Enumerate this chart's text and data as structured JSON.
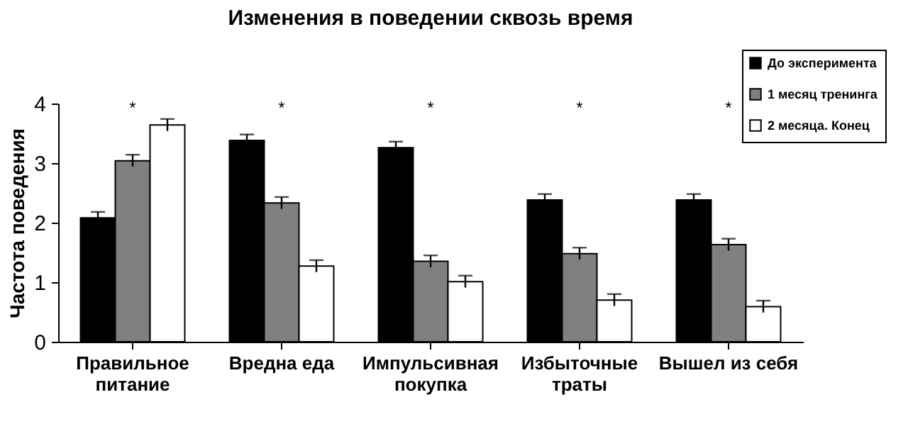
{
  "chart_data": {
    "type": "bar",
    "title": "Изменения в поведении сквозь время",
    "ylabel": "Частота поведения",
    "categories": [
      "Правильное\nпитание",
      "Вредна еда",
      "Импульсивная\nпокупка",
      "Избыточные\nтраты",
      "Вышел из себя"
    ],
    "series": [
      {
        "name": "До эксперимента",
        "color": "#000000",
        "values": [
          2.08,
          3.38,
          3.26,
          2.38,
          2.38
        ],
        "errors": [
          0.1,
          0.1,
          0.1,
          0.1,
          0.1
        ]
      },
      {
        "name": "1 месяц тренинга",
        "color": "#808080",
        "values": [
          3.04,
          2.33,
          1.35,
          1.48,
          1.63
        ],
        "errors": [
          0.1,
          0.1,
          0.1,
          0.1,
          0.1
        ]
      },
      {
        "name": "2 месяца. Конец",
        "color": "#ffffff",
        "values": [
          3.64,
          1.27,
          1.01,
          0.7,
          0.59
        ],
        "errors": [
          0.1,
          0.1,
          0.1,
          0.1,
          0.1
        ]
      }
    ],
    "ylim": [
      0,
      4
    ],
    "yticks": [
      0,
      1,
      2,
      3,
      4
    ],
    "grid": false,
    "legend": "top right",
    "annotations": [
      "*",
      "*",
      "*",
      "*",
      "*"
    ]
  }
}
